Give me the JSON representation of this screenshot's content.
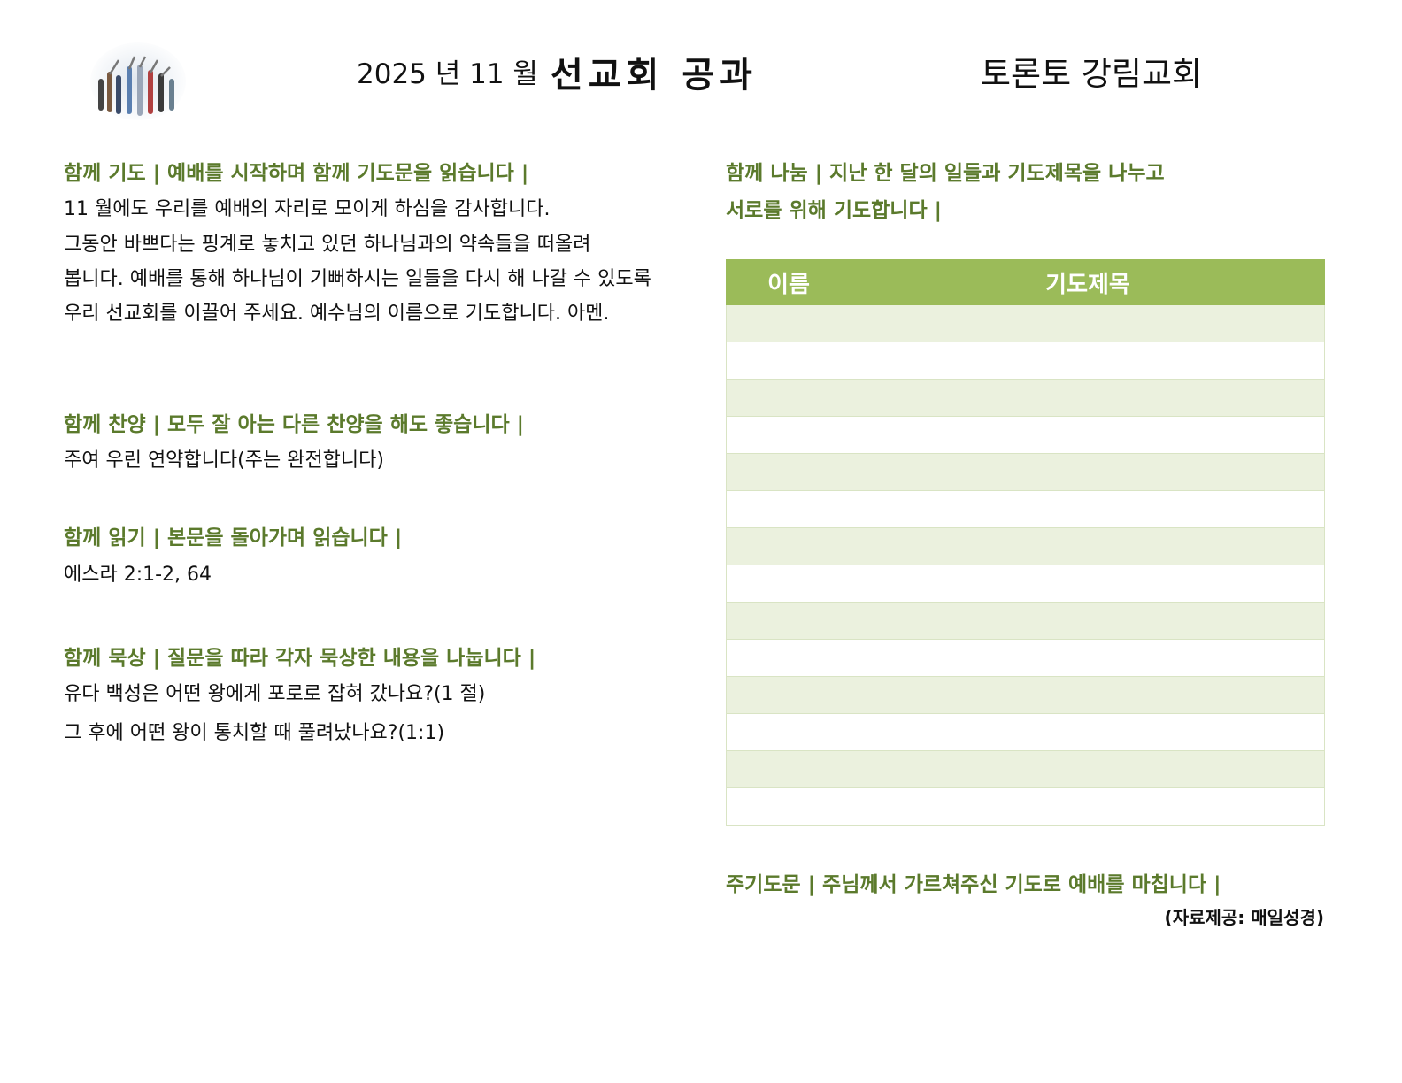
{
  "header": {
    "date": "2025 년 11 월",
    "title": "선교회 공과",
    "church": "토론토 강림교회"
  },
  "left": [
    {
      "heading": "함께 기도 | 예배를 시작하며 함께 기도문을 읽습니다 |",
      "lines": [
        "11 월에도 우리를 예배의 자리로 모이게 하심을 감사합니다.",
        "그동안 바쁘다는 핑계로 놓치고 있던 하나님과의 약속들을 떠올려",
        "봅니다. 예배를 통해 하나님이 기뻐하시는 일들을 다시 해 나갈 수 있도록",
        "우리 선교회를 이끌어 주세요. 예수님의 이름으로 기도합니다. 아멘."
      ]
    },
    {
      "heading": "함께 찬양 | 모두 잘 아는 다른 찬양을 해도 좋습니다 |",
      "lines": [
        "주여 우린 연약합니다(주는 완전합니다)"
      ]
    },
    {
      "heading": "함께 읽기 | 본문을 돌아가며 읽습니다 |",
      "lines": [
        "에스라 2:1-2, 64"
      ]
    },
    {
      "heading": "함께 묵상 | 질문을 따라 각자 묵상한 내용을 나눕니다 |",
      "lines": [
        "유다 백성은 어떤 왕에게 포로로 잡혀 갔나요?(1 절)",
        "그 후에 어떤 왕이 통치할 때 풀려났나요?(1:1)"
      ]
    }
  ],
  "right": {
    "heading": [
      "함께 나눔 | 지난 한 달의 일들과 기도제목을 나누고",
      "서로를 위해 기도합니다 |"
    ],
    "table": {
      "columns": [
        "이름",
        "기도제목"
      ]
    },
    "closing": "주기도문 | 주님께서 가르쳐주신 기도로 예배를 마칩니다 |",
    "credit": "(자료제공: 매일성경)"
  }
}
